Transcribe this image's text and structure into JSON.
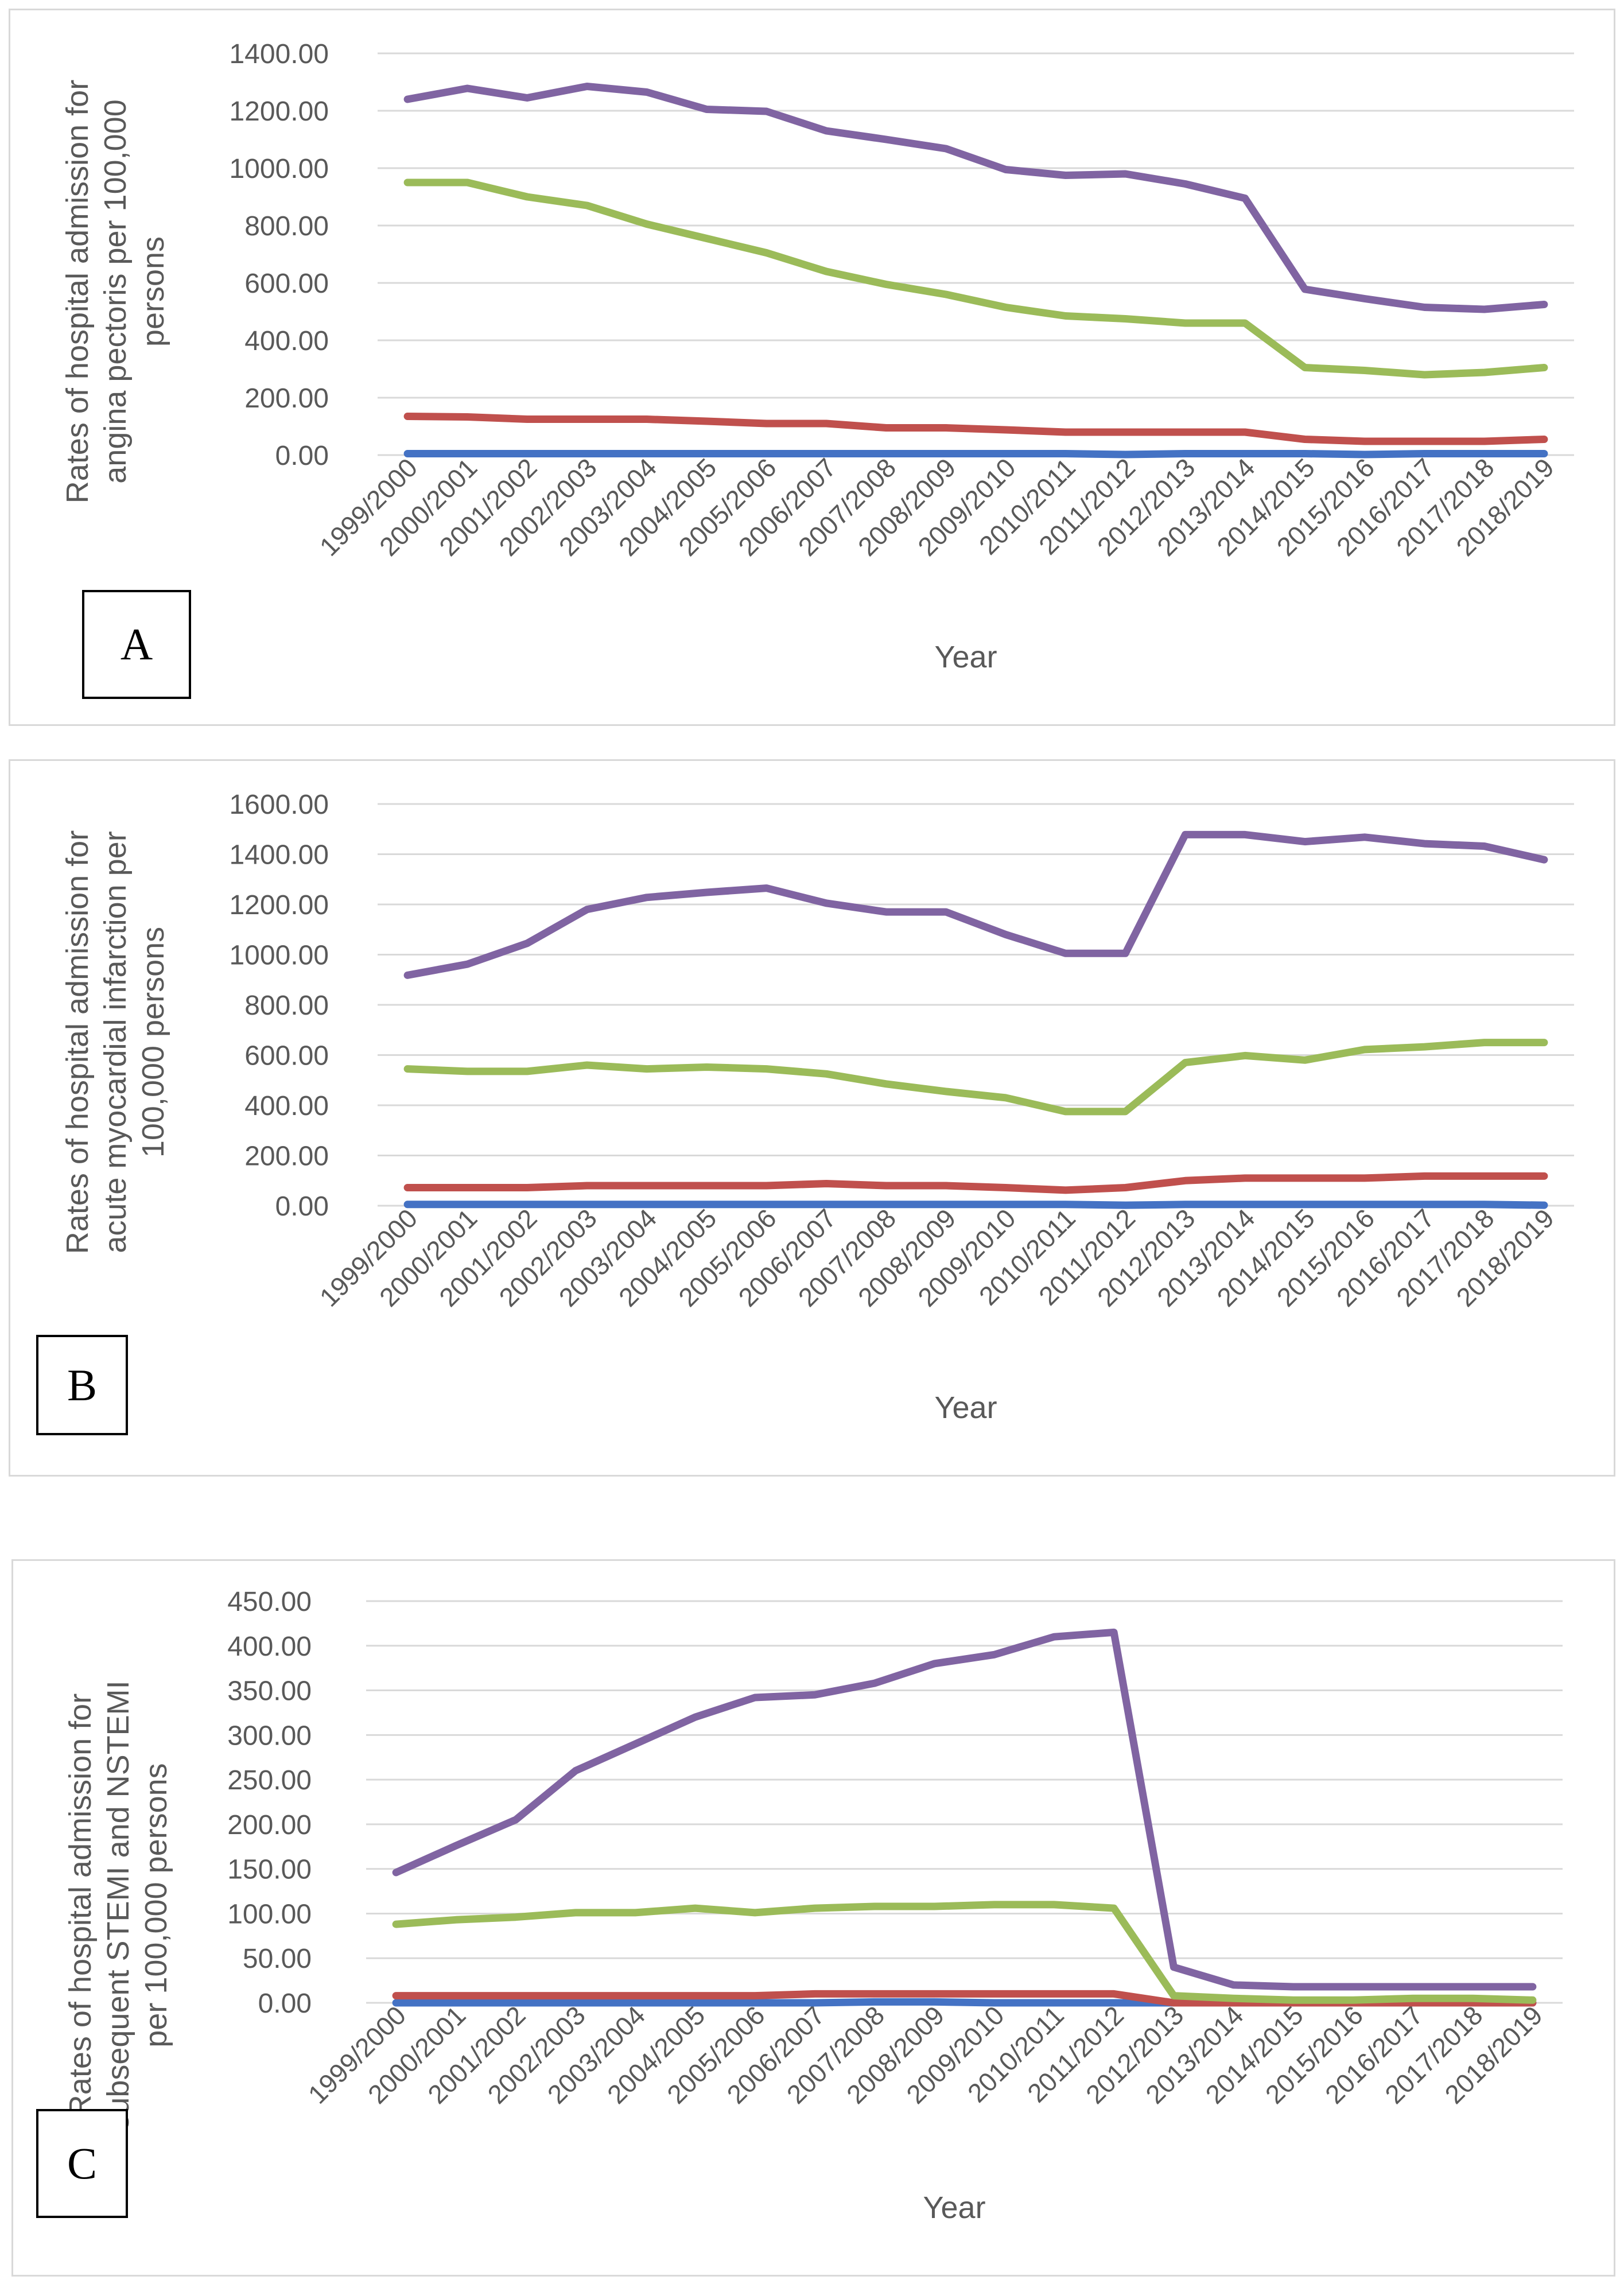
{
  "colors": {
    "series_blue": "#4472c4",
    "series_red": "#c0504d",
    "series_green": "#9bbb59",
    "series_purple": "#8064a2",
    "grid": "#d9d9d9",
    "text": "#595959"
  },
  "chart_data": [
    {
      "panel_label": "A",
      "type": "line",
      "title": "",
      "xlabel": "Year",
      "ylabel_lines": [
        "Rates of hospital admission for",
        "angina pectoris per 100,000",
        "persons"
      ],
      "categories": [
        "1999/2000",
        "2000/2001",
        "2001/2002",
        "2002/2003",
        "2003/2004",
        "2004/2005",
        "2005/2006",
        "2006/2007",
        "2007/2008",
        "2008/2009",
        "2009/2010",
        "2010/2011",
        "2011/2012",
        "2012/2013",
        "2013/2014",
        "2014/2015",
        "2015/2016",
        "2016/2017",
        "2017/2018",
        "2018/2019"
      ],
      "yticks": [
        "0.00",
        "200.00",
        "400.00",
        "600.00",
        "800.00",
        "1000.00",
        "1200.00",
        "1400.00"
      ],
      "ylim": [
        0,
        1400
      ],
      "grid": true,
      "series": [
        {
          "name": "blue",
          "color": "#4472c4",
          "values": [
            5,
            5,
            5,
            5,
            5,
            5,
            5,
            5,
            5,
            5,
            5,
            5,
            2,
            5,
            5,
            5,
            2,
            5,
            5,
            5
          ]
        },
        {
          "name": "red",
          "color": "#c0504d",
          "values": [
            135,
            133,
            125,
            125,
            125,
            118,
            110,
            110,
            95,
            95,
            88,
            80,
            80,
            80,
            80,
            55,
            48,
            48,
            48,
            55
          ]
        },
        {
          "name": "green",
          "color": "#9bbb59",
          "values": [
            950,
            950,
            900,
            870,
            805,
            755,
            705,
            640,
            595,
            560,
            515,
            485,
            475,
            460,
            460,
            305,
            295,
            280,
            288,
            305
          ]
        },
        {
          "name": "purple",
          "color": "#8064a2",
          "values": [
            1240,
            1278,
            1245,
            1285,
            1265,
            1205,
            1198,
            1130,
            1100,
            1068,
            995,
            975,
            980,
            945,
            895,
            578,
            545,
            515,
            508,
            525
          ]
        }
      ]
    },
    {
      "panel_label": "B",
      "type": "line",
      "title": "",
      "xlabel": "Year",
      "ylabel_lines": [
        "Rates of hospital admission for",
        "acute myocardial infarction per",
        "100,000 persons"
      ],
      "categories": [
        "1999/2000",
        "2000/2001",
        "2001/2002",
        "2002/2003",
        "2003/2004",
        "2004/2005",
        "2005/2006",
        "2006/2007",
        "2007/2008",
        "2008/2009",
        "2009/2010",
        "2010/2011",
        "2011/2012",
        "2012/2013",
        "2013/2014",
        "2014/2015",
        "2015/2016",
        "2016/2017",
        "2017/2018",
        "2018/2019"
      ],
      "yticks": [
        "0.00",
        "200.00",
        "400.00",
        "600.00",
        "800.00",
        "1000.00",
        "1200.00",
        "1400.00",
        "1600.00"
      ],
      "ylim": [
        0,
        1600
      ],
      "grid": true,
      "series": [
        {
          "name": "blue",
          "color": "#4472c4",
          "values": [
            5,
            5,
            5,
            5,
            5,
            5,
            5,
            5,
            5,
            5,
            5,
            5,
            2,
            5,
            5,
            5,
            5,
            5,
            5,
            2
          ]
        },
        {
          "name": "red",
          "color": "#c0504d",
          "values": [
            72,
            72,
            72,
            80,
            80,
            80,
            80,
            88,
            80,
            80,
            72,
            62,
            72,
            100,
            110,
            110,
            110,
            118,
            118,
            118
          ]
        },
        {
          "name": "green",
          "color": "#9bbb59",
          "values": [
            545,
            535,
            535,
            560,
            545,
            552,
            545,
            525,
            485,
            455,
            430,
            375,
            375,
            570,
            598,
            580,
            622,
            633,
            650,
            650
          ]
        },
        {
          "name": "purple",
          "color": "#8064a2",
          "values": [
            918,
            962,
            1045,
            1180,
            1228,
            1248,
            1265,
            1205,
            1170,
            1170,
            1080,
            1005,
            1005,
            1478,
            1478,
            1450,
            1468,
            1442,
            1432,
            1378
          ]
        }
      ]
    },
    {
      "panel_label": "C",
      "type": "line",
      "title": "",
      "xlabel": "Year",
      "ylabel_lines": [
        "Rates of hospital admission for",
        "subsequent STEMI and NSTEMI",
        "per 100,000 persons"
      ],
      "categories": [
        "1999/2000",
        "2000/2001",
        "2001/2002",
        "2002/2003",
        "2003/2004",
        "2004/2005",
        "2005/2006",
        "2006/2007",
        "2007/2008",
        "2008/2009",
        "2009/2010",
        "2010/2011",
        "2011/2012",
        "2012/2013",
        "2013/2014",
        "2014/2015",
        "2015/2016",
        "2016/2017",
        "2017/2018",
        "2018/2019"
      ],
      "yticks": [
        "0.00",
        "50.00",
        "100.00",
        "150.00",
        "200.00",
        "250.00",
        "300.00",
        "350.00",
        "400.00",
        "450.00"
      ],
      "ylim": [
        0,
        450
      ],
      "grid": true,
      "series": [
        {
          "name": "blue",
          "color": "#4472c4",
          "values": [
            0,
            0,
            0,
            0,
            0,
            0,
            0,
            0,
            1,
            1,
            0,
            0,
            0,
            0,
            0,
            0,
            0,
            0,
            0,
            0
          ]
        },
        {
          "name": "red",
          "color": "#c0504d",
          "values": [
            8,
            8,
            8,
            8,
            8,
            8,
            8,
            10,
            10,
            10,
            10,
            10,
            10,
            0,
            0,
            0,
            0,
            0,
            0,
            0
          ]
        },
        {
          "name": "green",
          "color": "#9bbb59",
          "values": [
            88,
            93,
            96,
            101,
            101,
            106,
            101,
            106,
            108,
            108,
            110,
            110,
            106,
            8,
            5,
            3,
            3,
            5,
            5,
            3
          ]
        },
        {
          "name": "purple",
          "color": "#8064a2",
          "values": [
            146,
            176,
            205,
            260,
            290,
            320,
            342,
            345,
            358,
            380,
            390,
            410,
            415,
            40,
            20,
            18,
            18,
            18,
            18,
            18
          ]
        }
      ]
    }
  ]
}
